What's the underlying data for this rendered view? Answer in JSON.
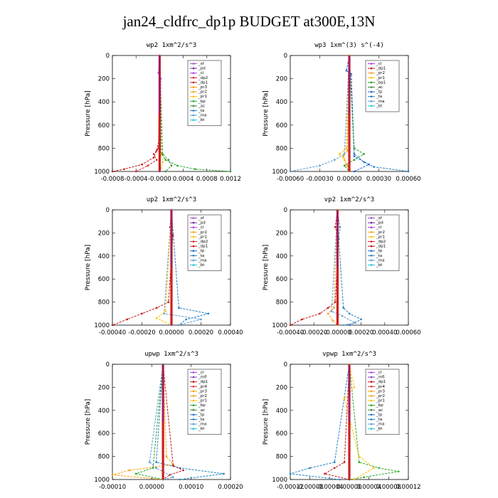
{
  "title": "jan24_cldfrc_dp1p  BUDGET at300E,13N",
  "colors": {
    "_sf": "#a050c8",
    "_pd": "#7a1fa2",
    "_cl": "#b23aee",
    "_dp2": "#e0202a",
    "_dp1": "#c01818",
    "_pr3": "#ff9a00",
    "_pr2": "#f0a020",
    "_pr1": "#ffc000",
    "_bp": "#27a827",
    "_ac": "#3a8a3a",
    "_tp": "#1a6ad8",
    "_ta": "#2080c0",
    "_ma": "#5a9ad0",
    "_bt": "#19c8d8",
    "_mfl": "#8040c0",
    "_pr4": "#e03030",
    "_bp1": "#2a9a2a",
    "_dp4": "#d02020"
  },
  "chart_data": [
    {
      "type": "line",
      "title": "wp2  1xm^2/s^3",
      "ylabel": "Pressure [hPa]",
      "xlim": [
        -0.0008,
        0.0012
      ],
      "ylim": [
        1000,
        0
      ],
      "xticks": [
        "-0.0008",
        "-0.0004",
        "-0.0000",
        "0.0004",
        "0.0008",
        "0.0012"
      ],
      "yticks": [
        "0",
        "200",
        "400",
        "600",
        "800",
        "1000"
      ],
      "legend": [
        "_sf",
        "_pd",
        "_cl",
        "_dp2",
        "_dp1",
        "_pr3",
        "_pr2",
        "_pr1",
        "_bp",
        "_ac",
        "_ta",
        "_ma",
        "_bt"
      ],
      "series": [
        {
          "name": "_dp1",
          "y": [
            0,
            700,
            820,
            880,
            940,
            980,
            1000
          ],
          "x": [
            0,
            0,
            -5e-05,
            -0.0001,
            -0.0003,
            -0.0006,
            -0.0008
          ]
        },
        {
          "name": "_dp2",
          "y": [
            0,
            800,
            850,
            900,
            950,
            1000
          ],
          "x": [
            0,
            -2e-05,
            -0.0001,
            -5e-05,
            -0.0002,
            -0.0004
          ]
        },
        {
          "name": "_bp",
          "y": [
            0,
            850,
            900,
            950,
            980,
            1000
          ],
          "x": [
            0,
            3e-05,
            0.0001,
            0.0003,
            0.0006,
            0.0012
          ]
        },
        {
          "name": "_ac",
          "y": [
            0,
            850,
            900,
            950,
            1000
          ],
          "x": [
            0,
            5e-05,
            0.00015,
            0.0002,
            0.0001
          ]
        },
        {
          "name": "_pr1",
          "y": [
            0,
            850,
            920,
            970,
            1000
          ],
          "x": [
            0,
            2e-05,
            5e-05,
            2e-05,
            0
          ]
        },
        {
          "name": "_cl",
          "y": [
            0,
            150,
            200,
            1000
          ],
          "x": [
            0,
            -2e-05,
            2e-05,
            0
          ]
        }
      ]
    },
    {
      "type": "line",
      "title": "wp3  1xm^(3) s^(-4)",
      "ylabel": "Pressure [hPa]",
      "xlim": [
        -0.0006,
        0.0006
      ],
      "ylim": [
        1000,
        0
      ],
      "xticks": [
        "-0.00060",
        "-0.00030",
        "0.00000",
        "0.00030",
        "0.00060"
      ],
      "yticks": [
        "0",
        "200",
        "400",
        "600",
        "800",
        "1000"
      ],
      "legend": [
        "_cl",
        "_dp1",
        "_pr2",
        "_pr1",
        "_bp1",
        "_ac",
        "_tp",
        "_ta",
        "_ma",
        "_bt"
      ],
      "series": [
        {
          "name": "_ma",
          "y": [
            0,
            850,
            900,
            950,
            1000
          ],
          "x": [
            0,
            -5e-05,
            -0.00015,
            -0.0003,
            -0.0006
          ]
        },
        {
          "name": "_ta",
          "y": [
            0,
            850,
            920,
            960,
            1000
          ],
          "x": [
            0,
            5e-05,
            0.00015,
            0.00025,
            0.0006
          ]
        },
        {
          "name": "_tp",
          "y": [
            0,
            130,
            160,
            870,
            940,
            1000
          ],
          "x": [
            0,
            -3e-05,
            2e-05,
            5e-05,
            0.0002,
            5e-05
          ]
        },
        {
          "name": "_bp1",
          "y": [
            0,
            800,
            850,
            900,
            950,
            1000
          ],
          "x": [
            0,
            5e-05,
            0.00015,
            5e-05,
            -5e-05,
            0
          ]
        },
        {
          "name": "_pr1",
          "y": [
            0,
            800,
            850,
            900,
            1000
          ],
          "x": [
            0,
            -3e-05,
            -0.0001,
            -5e-05,
            0
          ]
        },
        {
          "name": "_pr2",
          "y": [
            0,
            820,
            870,
            950,
            1000
          ],
          "x": [
            0,
            -2e-05,
            -6e-05,
            -2e-05,
            0
          ]
        }
      ]
    },
    {
      "type": "line",
      "title": "up2  1xm^2/s^3",
      "ylabel": "Pressure [hPa]",
      "xlim": [
        -0.0004,
        0.0004
      ],
      "ylim": [
        1000,
        0
      ],
      "xticks": [
        "-0.00040",
        "-0.00020",
        "0.00000",
        "0.00020",
        "0.00040"
      ],
      "yticks": [
        "0",
        "200",
        "400",
        "600",
        "800",
        "1000"
      ],
      "legend": [
        "_sf",
        "_pd",
        "_cl",
        "_pr2",
        "_pr1",
        "_dp2",
        "_dp1",
        "_tp",
        "_ta",
        "_ma",
        "_bt"
      ],
      "series": [
        {
          "name": "_dp1",
          "y": [
            0,
            150,
            220,
            800,
            850,
            900,
            950,
            1000
          ],
          "x": [
            0,
            -1e-05,
            1e-05,
            -2e-05,
            -0.0001,
            -0.0002,
            -0.0003,
            -0.0004
          ]
        },
        {
          "name": "_ta",
          "y": [
            0,
            850,
            900,
            950,
            1000
          ],
          "x": [
            0,
            5e-05,
            0.00025,
            0.0001,
            5e-05
          ]
        },
        {
          "name": "_ma",
          "y": [
            0,
            900,
            950,
            1000
          ],
          "x": [
            0,
            -5e-05,
            0.0002,
            5e-05
          ]
        },
        {
          "name": "_pr1",
          "y": [
            0,
            880,
            940,
            1000
          ],
          "x": [
            0,
            -4e-05,
            -0.0001,
            0
          ]
        },
        {
          "name": "_cl",
          "y": [
            0,
            1000
          ],
          "x": [
            0,
            0
          ]
        }
      ]
    },
    {
      "type": "line",
      "title": "vp2  1xm^2/s^3",
      "ylabel": "Pressure [hPa]",
      "xlim": [
        -0.0004,
        0.0006
      ],
      "ylim": [
        1000,
        0
      ],
      "xticks": [
        "-0.00040",
        "-0.00020",
        "-0.00000",
        "0.00020",
        "0.00040",
        "0.00060"
      ],
      "yticks": [
        "0",
        "200",
        "400",
        "600",
        "800",
        "1000"
      ],
      "legend": [
        "_sf",
        "_pd",
        "_cl",
        "_pr2",
        "_pr1",
        "_dp2",
        "_dp1",
        "_tp",
        "_ta",
        "_ma",
        "_bt"
      ],
      "series": [
        {
          "name": "_dp1",
          "y": [
            0,
            150,
            250,
            800,
            850,
            900,
            950,
            1000
          ],
          "x": [
            0,
            -2e-05,
            1e-05,
            -2e-05,
            -8e-05,
            -0.00015,
            -0.0003,
            -0.0004
          ]
        },
        {
          "name": "_ta",
          "y": [
            0,
            150,
            250,
            850,
            900,
            950,
            1000
          ],
          "x": [
            0,
            2e-05,
            1e-05,
            5e-05,
            0.0001,
            0.0002,
            0.0001
          ]
        },
        {
          "name": "_ma",
          "y": [
            0,
            880,
            920,
            980,
            1000
          ],
          "x": [
            0,
            -5e-05,
            4e-05,
            0.00015,
            5e-05
          ]
        },
        {
          "name": "_pr2",
          "y": [
            0,
            850,
            900,
            960,
            1000
          ],
          "x": [
            0,
            -3e-05,
            -8e-05,
            -4e-05,
            0
          ]
        }
      ]
    },
    {
      "type": "line",
      "title": "upwp  1xm^2/s^3",
      "ylabel": "Pressure [hPa]",
      "xlim": [
        -0.00015,
        0.0002
      ],
      "ylim": [
        1000,
        0
      ],
      "xticks": [
        "-0.00010",
        "0.00000",
        "0.00010",
        "0.00020"
      ],
      "yticks": [
        "0",
        "200",
        "400",
        "600",
        "800",
        "1000"
      ],
      "legend": [
        "_cl",
        "_mfl",
        "_dp1",
        "_pr4",
        "_pr3",
        "_pr2",
        "_pr1",
        "_bp",
        "_ac",
        "_tp",
        "_ta",
        "_ma",
        "_bt"
      ],
      "series": [
        {
          "name": "_ta",
          "y": [
            0,
            850,
            900,
            950,
            1000
          ],
          "x": [
            0,
            -2e-05,
            5e-05,
            0.00018,
            5e-05
          ]
        },
        {
          "name": "_pr3",
          "y": [
            0,
            800,
            870,
            920,
            960,
            1000
          ],
          "x": [
            0,
            1e-05,
            3e-05,
            -0.0001,
            -0.00015,
            0
          ]
        },
        {
          "name": "_dp1",
          "y": [
            0,
            880,
            920,
            960,
            1000
          ],
          "x": [
            0,
            3e-05,
            6e-05,
            2e-05,
            0
          ]
        },
        {
          "name": "_bp",
          "y": [
            0,
            900,
            950,
            1000
          ],
          "x": [
            0,
            -3e-05,
            -8e-05,
            0
          ]
        },
        {
          "name": "_ma",
          "y": [
            0,
            850,
            900,
            980,
            1000
          ],
          "x": [
            0,
            -4e-05,
            -2e-05,
            3e-05,
            0
          ]
        }
      ]
    },
    {
      "type": "line",
      "title": "vpwp  1xm^2/s^3",
      "ylabel": "Pressure [hPa]",
      "xlim": [
        -0.00012,
        0.00012
      ],
      "ylim": [
        1000,
        0
      ],
      "xticks": [
        "-0.00012",
        "-0.00008",
        "-0.00004",
        "0.00000",
        "0.00004",
        "0.00008",
        "0.00012"
      ],
      "yticks": [
        "0",
        "200",
        "400",
        "600",
        "800",
        "1000"
      ],
      "legend": [
        "_cl",
        "_mfl",
        "_dp1",
        "_pr4",
        "_pr3",
        "_pr2",
        "_pr1",
        "_bp",
        "_ac",
        "_tp",
        "_ta",
        "_ma",
        "_bt"
      ],
      "series": [
        {
          "name": "_ta",
          "y": [
            0,
            850,
            900,
            950,
            1000
          ],
          "x": [
            0,
            -3e-05,
            -8e-05,
            -0.00012,
            -2e-05
          ]
        },
        {
          "name": "_bp",
          "y": [
            0,
            850,
            900,
            930,
            980,
            1000
          ],
          "x": [
            0,
            2e-05,
            6e-05,
            0.0001,
            3e-05,
            0
          ]
        },
        {
          "name": "_dp1",
          "y": [
            0,
            850,
            900,
            950,
            1000
          ],
          "x": [
            0,
            -1e-05,
            -3e-05,
            -5e-05,
            0
          ]
        },
        {
          "name": "_pr1",
          "y": [
            0,
            200,
            300,
            800,
            900,
            1000
          ],
          "x": [
            0,
            1e-05,
            -1e-05,
            2e-05,
            5e-05,
            1e-05
          ]
        }
      ]
    }
  ]
}
